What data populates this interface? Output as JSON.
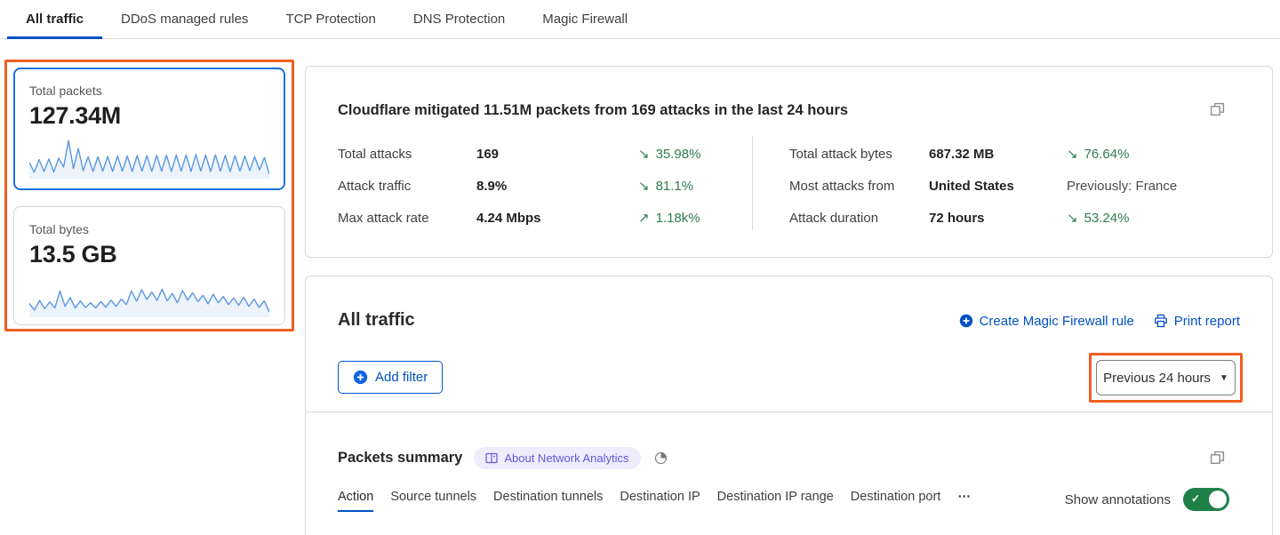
{
  "tabs": [
    {
      "label": "All traffic",
      "active": true
    },
    {
      "label": "DDoS managed rules",
      "active": false
    },
    {
      "label": "TCP Protection",
      "active": false
    },
    {
      "label": "DNS Protection",
      "active": false
    },
    {
      "label": "Magic Firewall",
      "active": false
    }
  ],
  "metric_cards": [
    {
      "title": "Total packets",
      "value": "127.34M",
      "spark": [
        3.8,
        1.2,
        4.6,
        1.4,
        4.8,
        1.3,
        5.0,
        2.6,
        9.8,
        2.2,
        7.6,
        1.6,
        5.4,
        1.4,
        5.4,
        1.5,
        5.5,
        1.4,
        5.6,
        1.5,
        5.6,
        1.4,
        5.7,
        1.5,
        5.7,
        1.4,
        5.8,
        1.5,
        5.8,
        1.4,
        5.9,
        1.5,
        5.9,
        1.4,
        6.0,
        1.5,
        5.9,
        1.4,
        5.9,
        1.5,
        5.8,
        1.4,
        5.7,
        1.5,
        5.6,
        1.6,
        5.4,
        1.8,
        5.2,
        0.6
      ]
    },
    {
      "title": "Total bytes",
      "value": "13.5 GB",
      "spark": [
        3.2,
        1.4,
        4.0,
        1.8,
        3.6,
        2.0,
        6.6,
        2.4,
        4.8,
        2.0,
        3.9,
        2.1,
        3.4,
        2.0,
        3.7,
        2.2,
        4.1,
        2.4,
        4.4,
        2.9,
        6.6,
        3.8,
        6.9,
        4.3,
        6.3,
        4.0,
        7.1,
        3.9,
        5.9,
        3.4,
        6.7,
        4.1,
        6.1,
        3.7,
        5.4,
        3.1,
        5.7,
        3.4,
        5.1,
        2.9,
        4.7,
        2.7,
        4.9,
        2.4,
        4.4,
        2.1,
        3.9,
        0.9
      ]
    }
  ],
  "summary": {
    "title": "Cloudflare mitigated 11.51M packets from 169 attacks in the last 24 hours",
    "stats_left": [
      {
        "label": "Total attacks",
        "value": "169",
        "arrow": "↘",
        "trend": "35.98%"
      },
      {
        "label": "Attack traffic",
        "value": "8.9%",
        "arrow": "↘",
        "trend": "81.1%"
      },
      {
        "label": "Max attack rate",
        "value": "4.24 Mbps",
        "arrow": "↗",
        "trend": "1.18k%"
      }
    ],
    "stats_right": [
      {
        "label": "Total attack bytes",
        "value": "687.32 MB",
        "arrow": "↘",
        "trend": "76.64%"
      },
      {
        "label": "Most attacks from",
        "value": "United States",
        "arrow": "",
        "trend": "Previously: France"
      },
      {
        "label": "Attack duration",
        "value": "72 hours",
        "arrow": "↘",
        "trend": "53.24%"
      }
    ]
  },
  "all_traffic": {
    "title": "All traffic",
    "create_rule_label": "Create Magic Firewall rule",
    "print_report_label": "Print report",
    "add_filter_label": "Add filter",
    "time_range_label": "Previous 24 hours"
  },
  "packets_summary": {
    "title": "Packets summary",
    "badge_label": "About Network Analytics",
    "sub_tabs": [
      {
        "label": "Action",
        "active": true
      },
      {
        "label": "Source tunnels",
        "active": false
      },
      {
        "label": "Destination tunnels",
        "active": false
      },
      {
        "label": "Destination IP",
        "active": false
      },
      {
        "label": "Destination IP range",
        "active": false
      },
      {
        "label": "Destination port",
        "active": false
      },
      {
        "label": "⋯",
        "active": false
      }
    ],
    "show_annotations_label": "Show annotations",
    "annotations_enabled": true
  },
  "colors": {
    "accent_blue": "#0051c3",
    "selected_card_border": "#1a6fdf",
    "sparkline_blue": "#5b97e0",
    "trend_green": "#2f7b52",
    "highlight_orange": "#f15e22",
    "badge_bg": "#efecfd",
    "badge_text": "#6458d8",
    "toggle_green": "#1e8048"
  }
}
